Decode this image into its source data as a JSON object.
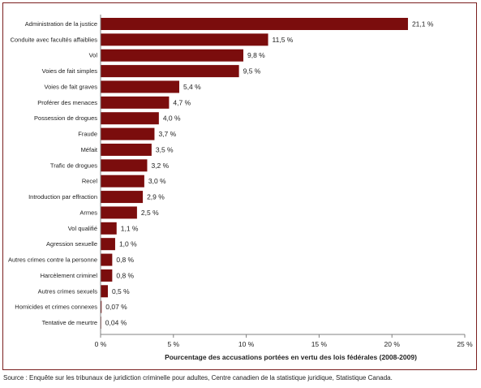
{
  "chart_data": {
    "type": "bar",
    "orientation": "horizontal",
    "categories": [
      "Administration de la justice",
      "Conduite avec facultés affaiblies",
      "Vol",
      "Voies de fait simples",
      "Voies de fait graves",
      "Proférer des menaces",
      "Possession de drogues",
      "Fraude",
      "Méfait",
      "Trafic de drogues",
      "Recel",
      "Introduction par effraction",
      "Armes",
      "Vol qualifié",
      "Agression sexuelle",
      "Autres crimes contre la personne",
      "Harcèlement criminel",
      "Autres crimes sexuels",
      "Homicides et crimes connexes",
      "Tentative de meurtre"
    ],
    "values": [
      21.1,
      11.5,
      9.8,
      9.5,
      5.4,
      4.7,
      4.0,
      3.7,
      3.5,
      3.2,
      3.0,
      2.9,
      2.5,
      1.1,
      1.0,
      0.8,
      0.8,
      0.5,
      0.07,
      0.04
    ],
    "value_labels": [
      "21,1 %",
      "11,5 %",
      "9,8 %",
      "9,5 %",
      "5,4 %",
      "4,7 %",
      "4,0 %",
      "3,7 %",
      "3,5 %",
      "3,2 %",
      "3,0 %",
      "2,9 %",
      "2,5 %",
      "1,1 %",
      "1,0 %",
      "0,8 %",
      "0,8 %",
      "0,5 %",
      "0,07 %",
      "0,04 %"
    ],
    "xlim": [
      0,
      25
    ],
    "xticks": [
      0,
      5,
      10,
      15,
      20,
      25
    ],
    "xtick_labels": [
      "0 %",
      "5 %",
      "10 %",
      "15 %",
      "20 %",
      "25 %"
    ],
    "xlabel": "Pourcentage des accusations portées en vertu des lois fédérales (2008-2009)",
    "ylabel": "",
    "title": "",
    "grid": false,
    "legend": "none",
    "bar_color": "#7b0d0d",
    "frame_color": "#7a1f1f"
  },
  "source": "Source : Enquête sur les tribunaux de juridiction criminelle pour adultes, Centre canadien de la statistique juridique, Statistique Canada."
}
